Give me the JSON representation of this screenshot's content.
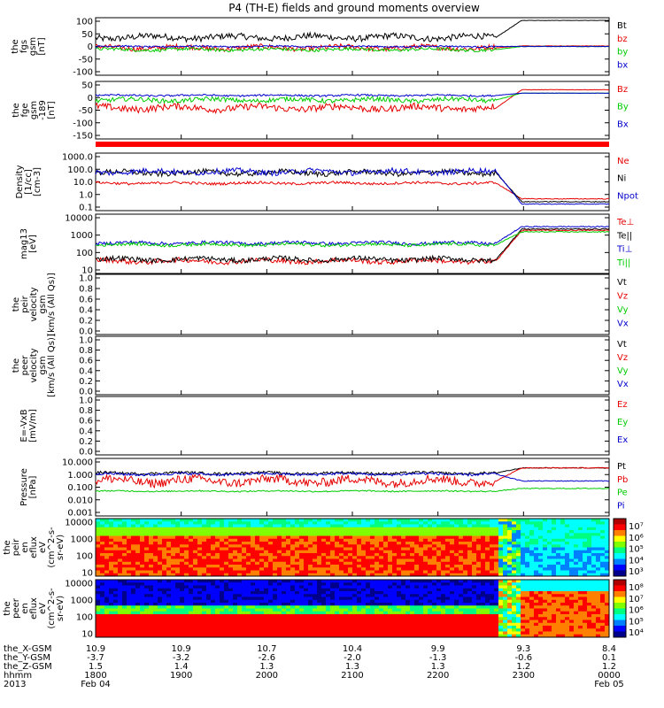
{
  "title": "P4 (TH-E) fields and ground moments overview",
  "time_axis": {
    "hours": [
      18,
      19,
      20,
      21,
      22,
      23,
      24
    ],
    "ephemeris": [
      {
        "label": "the_X-GSM",
        "values": [
          "10.9",
          "10.9",
          "10.7",
          "10.4",
          "9.9",
          "9.3",
          "8.4"
        ]
      },
      {
        "label": "the_Y-GSM",
        "values": [
          "-3.7",
          "-3.2",
          "-2.6",
          "-2.0",
          "-1.3",
          "-0.6",
          "0.1"
        ]
      },
      {
        "label": "the_Z-GSM",
        "values": [
          "1.5",
          "1.4",
          "1.3",
          "1.3",
          "1.3",
          "1.2",
          "1.2"
        ]
      },
      {
        "label": "hhmm",
        "values": [
          "1800",
          "1900",
          "2000",
          "2100",
          "2200",
          "2300",
          "0000"
        ]
      }
    ],
    "year_label": "2013",
    "date_start": "Feb 04",
    "date_end": "Feb 05"
  },
  "colors": {
    "black": "#000000",
    "red": "#e60000",
    "green": "#00cc00",
    "blue": "#0000cc"
  },
  "chart_data": [
    {
      "type": "line",
      "ylabel": [
        "the",
        "fgs",
        "gsm",
        "[nT]"
      ],
      "yticks": [
        "100",
        "50",
        "0",
        "-50",
        "-100"
      ],
      "ylim": [
        -100,
        100
      ],
      "series": [
        {
          "name": "Bt",
          "color": "black",
          "base": 35,
          "jitter": 12,
          "end": 100
        },
        {
          "name": "bz",
          "color": "red",
          "base": -5,
          "jitter": 10,
          "end": 2
        },
        {
          "name": "by",
          "color": "green",
          "base": -12,
          "jitter": 6,
          "end": 0
        },
        {
          "name": "bx",
          "color": "blue",
          "base": 0,
          "jitter": 3,
          "end": 0
        }
      ]
    },
    {
      "type": "line",
      "ylabel": [
        "the",
        "fge",
        "gsm",
        "-189",
        "[nT]"
      ],
      "yticks": [
        "50",
        "0",
        "-50",
        "-100",
        "-150"
      ],
      "ylim": [
        -180,
        50
      ],
      "series": [
        {
          "name": "Bz",
          "color": "red",
          "base": -55,
          "jitter": 15,
          "end": 25
        },
        {
          "name": "By",
          "color": "green",
          "base": -20,
          "jitter": 10,
          "end": 10
        },
        {
          "name": "Bx",
          "color": "blue",
          "base": 0,
          "jitter": 4,
          "end": 10
        }
      ]
    },
    {
      "type": "line",
      "ylabel": [
        "Density",
        "[1/cc]",
        "[cm-3]"
      ],
      "yscale": "log",
      "yticks": [
        "1000.0",
        "100.0",
        "10.0",
        "1.0",
        "0.1"
      ],
      "ylim": [
        0.1,
        1000
      ],
      "series": [
        {
          "name": "Ne",
          "color": "red",
          "base": 8,
          "jitter": 0.1,
          "end": 0.5
        },
        {
          "name": "Ni",
          "color": "black",
          "base": 50,
          "jitter": 0.2,
          "end": 0.3
        },
        {
          "name": "Npot",
          "color": "blue",
          "base": 60,
          "jitter": 0.2,
          "end": 0.2
        }
      ]
    },
    {
      "type": "line",
      "ylabel": [
        "mag13",
        "[eV]"
      ],
      "yscale": "log",
      "yticks": [
        "10000",
        "1000",
        "100",
        "10"
      ],
      "ylim": [
        5,
        10000
      ],
      "series_labels": [
        "Te⊥",
        "Te||",
        "Ti⊥",
        "Ti||"
      ],
      "series": [
        {
          "name": "Te⊥",
          "color": "red",
          "base": 20,
          "jitter": 0.15,
          "end": 1500
        },
        {
          "name": "Te||",
          "color": "black",
          "base": 25,
          "jitter": 0.15,
          "end": 1800
        },
        {
          "name": "Ti⊥",
          "color": "blue",
          "base": 250,
          "jitter": 0.1,
          "end": 2500
        },
        {
          "name": "Ti||",
          "color": "green",
          "base": 200,
          "jitter": 0.1,
          "end": 1200
        }
      ]
    },
    {
      "type": "line",
      "ylabel": [
        "the",
        "peir",
        "velocity",
        "gsm",
        "[km/s (All Qs)]"
      ],
      "yticks": [
        "1.0",
        "0.8",
        "0.6",
        "0.4",
        "0.2",
        "0.0"
      ],
      "ylim": [
        0,
        1
      ],
      "empty": true,
      "series_labels": [
        "Vt",
        "Vz",
        "Vy",
        "Vx"
      ]
    },
    {
      "type": "line",
      "ylabel": [
        "the",
        "peer",
        "velocity",
        "gsm",
        "[km/s (All Qs)]"
      ],
      "yticks": [
        "1.0",
        "0.8",
        "0.6",
        "0.4",
        "0.2",
        "0.0"
      ],
      "ylim": [
        0,
        1
      ],
      "empty": true,
      "series_labels": [
        "Vt",
        "Vz",
        "Vy",
        "Vx"
      ]
    },
    {
      "type": "line",
      "ylabel": [
        "E=-VxB",
        "[mV/m]"
      ],
      "yticks": [
        "1.0",
        "0.8",
        "0.6",
        "0.4",
        "0.2",
        "0.0"
      ],
      "ylim": [
        0,
        1
      ],
      "empty": true,
      "series_labels": [
        "Ez",
        "Ey",
        "Ex"
      ]
    },
    {
      "type": "line",
      "ylabel": [
        "Pressure",
        "[nPa]"
      ],
      "yscale": "log",
      "yticks": [
        "10.000",
        "1.000",
        "0.100",
        "0.010",
        "0.001"
      ],
      "ylim": [
        0.001,
        10
      ],
      "series": [
        {
          "name": "Pt",
          "color": "black",
          "base": 1.2,
          "jitter": 0.1,
          "end": 3
        },
        {
          "name": "Pb",
          "color": "red",
          "base": 0.3,
          "jitter": 0.35,
          "end": 3
        },
        {
          "name": "Pe",
          "color": "green",
          "base": 0.05,
          "jitter": 0.05,
          "end": 0.08
        },
        {
          "name": "Pi",
          "color": "blue",
          "base": 1.0,
          "jitter": 0.1,
          "end": 0.3
        }
      ]
    },
    {
      "type": "heatmap",
      "ylabel": [
        "the",
        "peir",
        "en",
        "eflux",
        "eV",
        "(cm^2-s-",
        "sr-eV)"
      ],
      "yticks": [
        "10000",
        "1000",
        "100",
        "10"
      ],
      "colorbar_ticks": [
        "10⁷",
        "10⁶",
        "10⁵",
        "10⁴",
        "10³"
      ]
    },
    {
      "type": "heatmap",
      "ylabel": [
        "the",
        "peer",
        "en",
        "eflux",
        "eV",
        "(cm^2-s-",
        "sr-eV)"
      ],
      "yticks": [
        "10000",
        "1000",
        "100",
        "10"
      ],
      "colorbar_ticks": [
        "10⁸",
        "10⁷",
        "10⁶",
        "10⁵",
        "10⁴"
      ]
    }
  ]
}
